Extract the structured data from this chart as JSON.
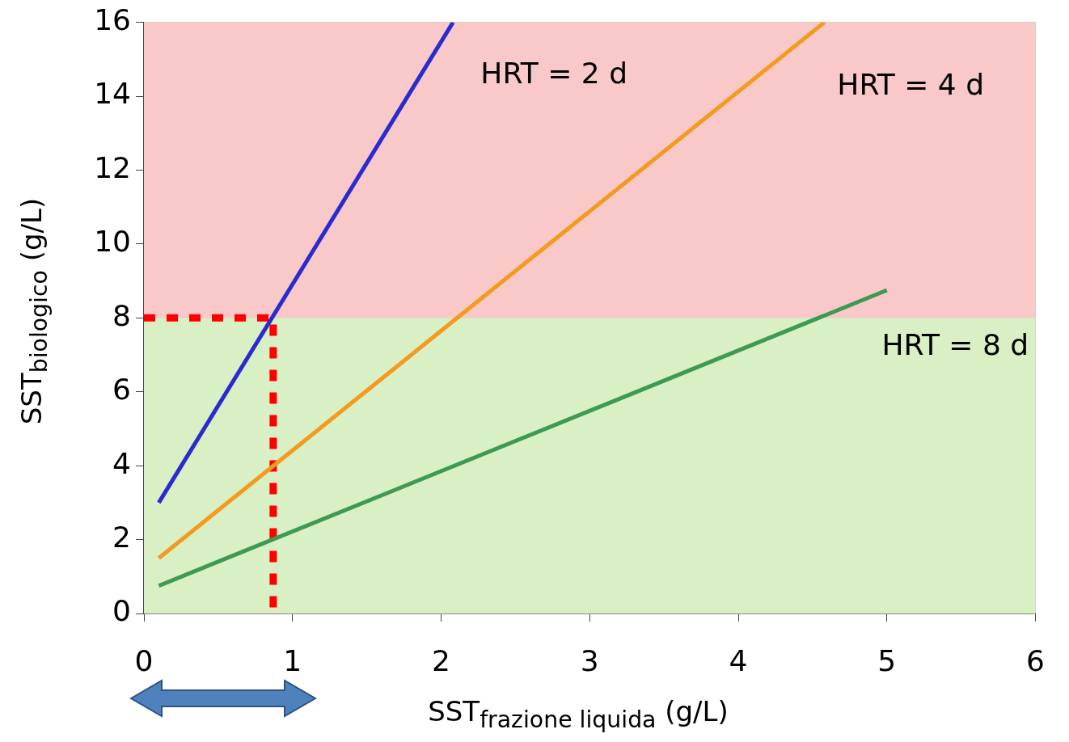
{
  "chart_data": {
    "type": "line",
    "xlabel": "SST$_{frazione liquida}$ (g/L)",
    "ylabel": "SST$_{biologico}$  (g/L)",
    "xlim": [
      0,
      6
    ],
    "ylim": [
      0,
      16
    ],
    "xticks": [
      0,
      1,
      2,
      3,
      4,
      5,
      6
    ],
    "yticks": [
      0,
      2,
      4,
      6,
      8,
      10,
      12,
      14,
      16
    ],
    "grid": true,
    "bands": [
      {
        "axis": "y",
        "from": 0,
        "to": 8,
        "color": "#d9efc4"
      },
      {
        "axis": "y",
        "from": 8,
        "to": 16,
        "color": "#f9c9ca"
      }
    ],
    "series": [
      {
        "color": "#2a2ad0",
        "x": [
          0.1,
          2.08
        ],
        "values": [
          3,
          16
        ]
      },
      {
        "color": "#f39a1f",
        "x": [
          0.1,
          4.58
        ],
        "values": [
          1.5,
          16
        ]
      },
      {
        "color": "#3d9a55",
        "x": [
          0.1,
          5
        ],
        "values": [
          0.75,
          8.75
        ]
      },
      {
        "color": "#ff0000",
        "x": [
          0,
          0.87,
          0.87
        ],
        "values": [
          8,
          8,
          0
        ],
        "line_style": "dotted"
      }
    ],
    "annotations": [
      "HRT = 2 d",
      "HRT = 4 d",
      "HRT = 8 d"
    ]
  }
}
